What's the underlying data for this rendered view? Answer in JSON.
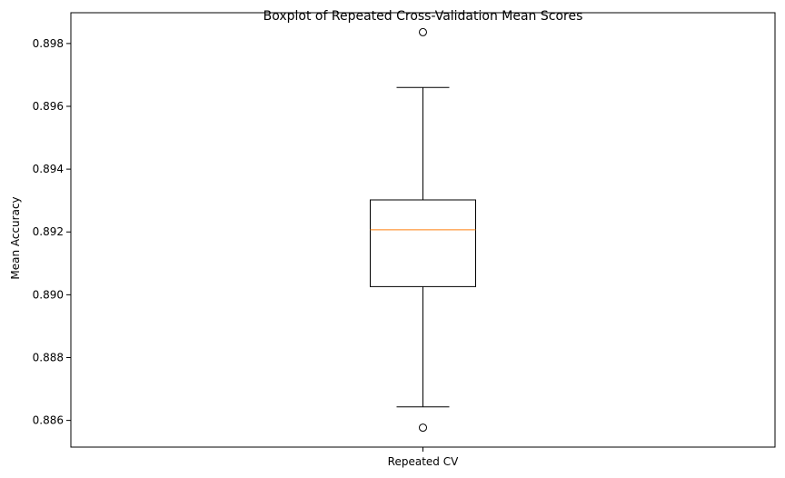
{
  "chart_data": {
    "type": "box",
    "title": "Boxplot of Repeated Cross-Validation Mean Scores",
    "xlabel": "",
    "ylabel": "Mean Accuracy",
    "categories": [
      "Repeated CV"
    ],
    "boxes": [
      {
        "category": "Repeated CV",
        "whisker_low": 0.88643,
        "q1": 0.89026,
        "median": 0.89207,
        "q3": 0.89302,
        "whisker_high": 0.8966,
        "outliers": [
          0.89836,
          0.88577
        ]
      }
    ],
    "ylim": [
      0.88515,
      0.89898
    ],
    "yticks": [
      0.886,
      0.888,
      0.89,
      0.892,
      0.894,
      0.896,
      0.898
    ],
    "ytick_labels": [
      "0.886",
      "0.888",
      "0.890",
      "0.892",
      "0.894",
      "0.896",
      "0.898"
    ],
    "grid": false,
    "colors": {
      "median": "#ff7f0e",
      "box": "#000000",
      "outlier": "#000000"
    }
  }
}
